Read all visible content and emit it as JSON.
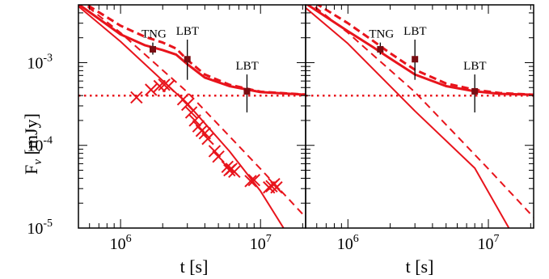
{
  "colors": {
    "curve": "#e8141c",
    "marker": "#7a0d12",
    "axis": "#000000"
  },
  "chart_data": [
    {
      "type": "line",
      "panel": "left",
      "xlabel": "t [s]",
      "ylabel": "F",
      "ylabel_sub": "ν",
      "ylabel_unit": " [mJy]",
      "xscale": "log",
      "yscale": "log",
      "xlim": [
        500000,
        21000000
      ],
      "ylim": [
        1e-05,
        0.005
      ],
      "xticklabels": [
        {
          "value": 1000000,
          "base": "10",
          "exp": "6"
        },
        {
          "value": 10000000,
          "base": "10",
          "exp": "7"
        }
      ],
      "yticklabels": [
        {
          "value": 0.001,
          "base": "10",
          "exp": "-3"
        },
        {
          "value": 0.0001,
          "base": "10",
          "exp": "-4"
        },
        {
          "value": 1e-05,
          "base": "10",
          "exp": "-5"
        }
      ],
      "series": [
        {
          "style": "solid-thick",
          "x": [
            500000,
            1000000,
            1500000,
            2000000,
            2500000,
            3000000,
            4000000,
            6000000,
            10000000,
            21000000
          ],
          "y": [
            0.0051,
            0.0022,
            0.00162,
            0.00142,
            0.00125,
            0.00096,
            0.00066,
            0.00052,
            0.00044,
            0.00041
          ]
        },
        {
          "style": "dashed-thick",
          "x": [
            500000,
            1000000,
            1500000,
            2000000,
            2500000,
            3000000,
            4000000,
            6000000,
            10000000,
            21000000
          ],
          "y": [
            0.0058,
            0.0028,
            0.00205,
            0.00175,
            0.00148,
            0.00108,
            0.00072,
            0.00054,
            0.000445,
            0.000412
          ]
        },
        {
          "style": "solid",
          "x": [
            500000,
            1000000,
            3000000,
            6000000,
            10000000,
            15000000
          ],
          "y": [
            0.0048,
            0.0018,
            0.00032,
            8.5e-05,
            2.8e-05,
            9.3e-06
          ]
        },
        {
          "style": "dashed",
          "x": [
            500000,
            1000000,
            3000000,
            10000000,
            21000000
          ],
          "y": [
            0.0058,
            0.0023,
            0.00044,
            5.2e-05,
            1.35e-05
          ]
        },
        {
          "style": "dotted",
          "x": [
            500000,
            21000000
          ],
          "y": [
            0.0004,
            0.0004
          ]
        }
      ],
      "x_markers": {
        "x": [
          1300000,
          1650000,
          1900000,
          2050000,
          2200000,
          2800000,
          3000000,
          3200000,
          3400000,
          3600000,
          3800000,
          4000000,
          4200000,
          4700000,
          5000000,
          5800000,
          6000000,
          6200000,
          6500000,
          8500000,
          9000000,
          11500000,
          12000000,
          12500000,
          13000000
        ],
        "y": [
          0.00038,
          0.00047,
          0.00052,
          0.00054,
          0.00052,
          0.00036,
          0.00031,
          0.00025,
          0.0002,
          0.00017,
          0.00015,
          0.00014,
          0.00012,
          8.5e-05,
          7.3e-05,
          5.5e-05,
          5e-05,
          5.2e-05,
          4.8e-05,
          3.7e-05,
          3.8e-05,
          3.1e-05,
          3.2e-05,
          3.4e-05,
          3.1e-05
        ]
      },
      "points": [
        {
          "label": "TNG",
          "x": 1700000,
          "y": 0.00145,
          "yerr_lo": 0.00125,
          "yerr_hi": 0.00175
        },
        {
          "label": "LBT",
          "x": 3000000,
          "y": 0.0011,
          "yerr_lo": 0.00062,
          "yerr_hi": 0.0019
        },
        {
          "label": "LBT",
          "x": 8000000,
          "y": 0.00045,
          "yerr_lo": 0.00025,
          "yerr_hi": 0.00072
        }
      ]
    },
    {
      "type": "line",
      "panel": "right",
      "xlabel": "t [s]",
      "xscale": "log",
      "yscale": "log",
      "xlim": [
        500000,
        21000000
      ],
      "ylim": [
        1e-05,
        0.005
      ],
      "xticklabels": [
        {
          "value": 1000000,
          "base": "10",
          "exp": "6"
        },
        {
          "value": 10000000,
          "base": "10",
          "exp": "7"
        }
      ],
      "series": [
        {
          "style": "solid-thick",
          "x": [
            500000,
            1000000,
            1500000,
            2000000,
            3000000,
            5000000,
            8000000,
            12000000,
            21000000
          ],
          "y": [
            0.0052,
            0.0024,
            0.00155,
            0.00112,
            0.00072,
            0.00052,
            0.00045,
            0.00042,
            0.00041
          ]
        },
        {
          "style": "dashed-thick",
          "x": [
            500000,
            1000000,
            1500000,
            2000000,
            3000000,
            5000000,
            8000000,
            12000000,
            21000000
          ],
          "y": [
            0.0062,
            0.003,
            0.00185,
            0.0013,
            0.00082,
            0.00056,
            0.00047,
            0.00043,
            0.00041
          ]
        },
        {
          "style": "solid",
          "x": [
            500000,
            1000000,
            3000000,
            8000000,
            14000000
          ],
          "y": [
            0.0046,
            0.0017,
            0.00026,
            5.3e-05,
            1e-05
          ]
        },
        {
          "style": "dashed",
          "x": [
            500000,
            1000000,
            3000000,
            10000000,
            21000000
          ],
          "y": [
            0.0058,
            0.0023,
            0.00044,
            5.2e-05,
            1.35e-05
          ]
        },
        {
          "style": "dotted",
          "x": [
            500000,
            21000000
          ],
          "y": [
            0.0004,
            0.0004
          ]
        }
      ],
      "points": [
        {
          "label": "TNG",
          "x": 1700000,
          "y": 0.00145,
          "yerr_lo": 0.00125,
          "yerr_hi": 0.00175
        },
        {
          "label": "LBT",
          "x": 3000000,
          "y": 0.0011,
          "yerr_lo": 0.00062,
          "yerr_hi": 0.0019
        },
        {
          "label": "LBT",
          "x": 8000000,
          "y": 0.00045,
          "yerr_lo": 0.00025,
          "yerr_hi": 0.00072
        }
      ]
    }
  ]
}
